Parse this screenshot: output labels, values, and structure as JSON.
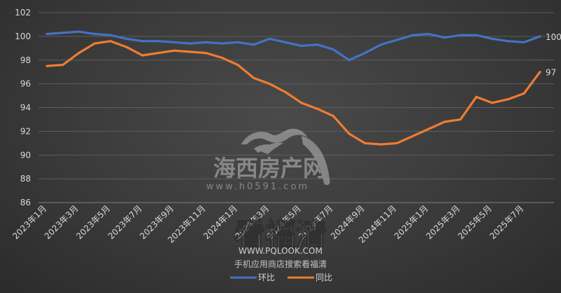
{
  "chart_data": {
    "type": "line",
    "x": [
      "2023年1月",
      "2023年2月",
      "2023年3月",
      "2023年4月",
      "2023年5月",
      "2023年6月",
      "2023年7月",
      "2023年8月",
      "2023年9月",
      "2023年10月",
      "2023年11月",
      "2023年12月",
      "2024年1月",
      "2024年2月",
      "2024年3月",
      "2024年4月",
      "2024年5月",
      "2024年6月",
      "2024年7月",
      "2024年8月",
      "2024年9月",
      "2024年10月",
      "2024年11月",
      "2024年12月",
      "2025年1月",
      "2025年2月",
      "2025年3月",
      "2025年4月",
      "2025年5月",
      "2025年6月",
      "2025年7月",
      "2025年8月"
    ],
    "x_tick_labels": [
      "2023年1月",
      "2023年3月",
      "2023年5月",
      "2023年7月",
      "2023年9月",
      "2023年11月",
      "2024年1月",
      "2024年3月",
      "2024年5月",
      "2024年7月",
      "2024年9月",
      "2024年11月",
      "2025年1月",
      "2025年3月",
      "2025年5月",
      "2025年7月"
    ],
    "series": [
      {
        "name": "环比",
        "color": "#4472c4",
        "values": [
          100.2,
          100.3,
          100.4,
          100.2,
          100.1,
          99.8,
          99.6,
          99.6,
          99.5,
          99.4,
          99.5,
          99.4,
          99.5,
          99.3,
          99.8,
          99.5,
          99.2,
          99.3,
          98.9,
          98.0,
          98.6,
          99.3,
          99.7,
          100.1,
          100.2,
          99.9,
          100.1,
          100.1,
          99.8,
          99.6,
          99.5,
          100.0
        ],
        "end_label": "100"
      },
      {
        "name": "同比",
        "color": "#ed7d31",
        "values": [
          97.5,
          97.6,
          98.6,
          99.4,
          99.6,
          99.1,
          98.4,
          98.6,
          98.8,
          98.7,
          98.6,
          98.2,
          97.6,
          96.5,
          96.0,
          95.3,
          94.4,
          93.9,
          93.3,
          91.8,
          91.0,
          90.9,
          91.0,
          91.6,
          92.2,
          92.8,
          93.0,
          94.9,
          94.4,
          94.7,
          95.2,
          97.0
        ],
        "end_label": "97"
      }
    ],
    "ylim": [
      86,
      102
    ],
    "yticks": [
      86,
      88,
      90,
      92,
      94,
      96,
      98,
      100,
      102
    ],
    "grid": true,
    "legend_position": "bottom"
  },
  "watermark": {
    "logo_text": "海西房产网",
    "logo_url": "www.h0591.com",
    "brand_text": "看福清",
    "brand_url": "WWW.PQLOOK.COM",
    "app_note": "手机应用商店搜索看福清"
  }
}
